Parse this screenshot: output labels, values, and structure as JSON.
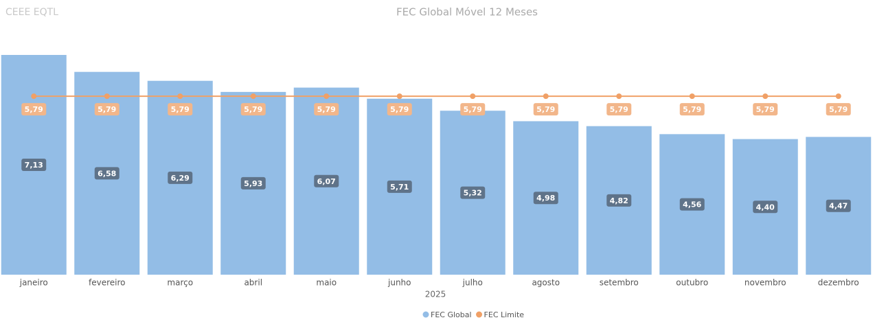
{
  "header": "CEEE EQTL",
  "chart_data": {
    "type": "bar-line",
    "title": "FEC Global Móvel 12 Meses",
    "x_label": "2025",
    "categories": [
      "janeiro",
      "fevereiro",
      "março",
      "abril",
      "maio",
      "junho",
      "julho",
      "agosto",
      "setembro",
      "outubro",
      "novembro",
      "dezembro"
    ],
    "series": [
      {
        "name": "FEC Global",
        "kind": "bar",
        "color": "#93bde6",
        "label_color": "#5f7389",
        "values": [
          7.13,
          6.58,
          6.29,
          5.93,
          6.07,
          5.71,
          5.32,
          4.98,
          4.82,
          4.56,
          4.4,
          4.47
        ],
        "value_labels": [
          "7,13",
          "6,58",
          "6,29",
          "5,93",
          "6,07",
          "5,71",
          "5,32",
          "4,98",
          "4,82",
          "4,56",
          "4,40",
          "4,47"
        ]
      },
      {
        "name": "FEC Limite",
        "kind": "line",
        "color": "#f0a066",
        "label_color": "#f2b68a",
        "values": [
          5.79,
          5.79,
          5.79,
          5.79,
          5.79,
          5.79,
          5.79,
          5.79,
          5.79,
          5.79,
          5.79,
          5.79
        ],
        "value_labels": [
          "5,79",
          "5,79",
          "5,79",
          "5,79",
          "5,79",
          "5,79",
          "5,79",
          "5,79",
          "5,79",
          "5,79",
          "5,79",
          "5,79"
        ]
      }
    ],
    "legend": "bottom"
  }
}
